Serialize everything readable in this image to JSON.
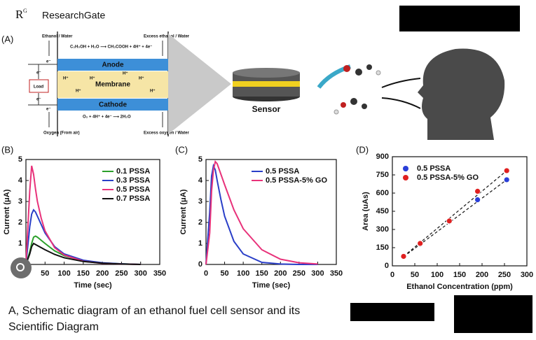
{
  "header": {
    "logo": "R",
    "logo_sup": "G",
    "site": "ResearchGate"
  },
  "figure": {
    "panel_a": "(A)",
    "schematic": {
      "inlet_top": "Ethanol / Water",
      "outlet_top": "Excess ethanol / Water",
      "anode_reaction": "C₂H₅OH + H₂O ⟶ CH₃COOH + 4H⁺ + 4e⁻",
      "anode": "Anode",
      "membrane": "Membrane",
      "cathode": "Cathode",
      "cathode_reaction": "O₂ + 4H⁺ + 4e⁻ ⟶ 2H₂O",
      "inlet_bottom": "Oxygen (From air)",
      "outlet_bottom": "Excess oxygen / Water",
      "load": "Load",
      "proton": "H⁺",
      "electron": "e⁻",
      "sensor": "Sensor"
    }
  },
  "chart_data": [
    {
      "type": "line",
      "panel": "(B)",
      "xlabel": "Time (sec)",
      "ylabel": "Current (μA)",
      "x": [
        0,
        10,
        15,
        20,
        25,
        30,
        40,
        50,
        75,
        100,
        150,
        200,
        250,
        300
      ],
      "series": [
        {
          "name": "0.1 PSSA",
          "color": "#2ca02c",
          "values": [
            0,
            0.6,
            1.0,
            1.3,
            1.35,
            1.3,
            1.15,
            1.0,
            0.65,
            0.42,
            0.18,
            0.07,
            0.03,
            0
          ]
        },
        {
          "name": "0.3 PSSA",
          "color": "#2a3fc8",
          "values": [
            0,
            1.8,
            2.4,
            2.6,
            2.5,
            2.3,
            1.9,
            1.5,
            0.85,
            0.5,
            0.2,
            0.08,
            0.03,
            0
          ]
        },
        {
          "name": "0.5 PSSA",
          "color": "#e8327a",
          "values": [
            0,
            3.5,
            4.7,
            4.3,
            3.6,
            3.0,
            2.2,
            1.6,
            0.8,
            0.45,
            0.15,
            0.05,
            0.02,
            0
          ]
        },
        {
          "name": "0.7 PSSA",
          "color": "#111111",
          "values": [
            0,
            0.5,
            0.85,
            1.0,
            0.95,
            0.9,
            0.8,
            0.7,
            0.48,
            0.32,
            0.14,
            0.06,
            0.02,
            0
          ]
        }
      ],
      "xlim": [
        0,
        350
      ],
      "xticks": [
        0,
        50,
        100,
        150,
        200,
        250,
        300,
        350
      ],
      "ylim": [
        0,
        5
      ],
      "yticks": [
        0,
        1,
        2,
        3,
        4,
        5
      ],
      "legend": "upper right"
    },
    {
      "type": "line",
      "panel": "(C)",
      "xlabel": "Time (sec)",
      "ylabel": "Current (μA)",
      "x": [
        0,
        10,
        15,
        20,
        25,
        30,
        40,
        50,
        75,
        100,
        150,
        200,
        250,
        300
      ],
      "series": [
        {
          "name": "0.5 PSSA",
          "color": "#2a3fc8",
          "values": [
            0,
            2.5,
            4.2,
            4.7,
            4.5,
            4.0,
            3.1,
            2.3,
            1.1,
            0.5,
            0.1,
            0.02,
            0,
            0
          ]
        },
        {
          "name": "0.5 PSSA-5% GO",
          "color": "#e8327a",
          "values": [
            0,
            1.5,
            3.5,
            4.5,
            4.9,
            4.8,
            4.3,
            3.8,
            2.6,
            1.7,
            0.7,
            0.25,
            0.08,
            0.02
          ]
        }
      ],
      "xlim": [
        0,
        350
      ],
      "xticks": [
        0,
        50,
        100,
        150,
        200,
        250,
        300,
        350
      ],
      "ylim": [
        0,
        5
      ],
      "yticks": [
        0,
        1,
        2,
        3,
        4,
        5
      ],
      "legend": "upper right"
    },
    {
      "type": "scatter",
      "panel": "(D)",
      "xlabel": "Ethanol Concentration (ppm)",
      "ylabel": "Area (uAs)",
      "series": [
        {
          "name": "0.5 PSSA",
          "color": "#2a3fd8",
          "x": [
            25,
            62,
            127,
            190,
            255
          ],
          "values": [
            75,
            180,
            365,
            545,
            710
          ]
        },
        {
          "name": "0.5 PSSA-5% GO",
          "color": "#e02020",
          "x": [
            25,
            62,
            127,
            190,
            255
          ],
          "values": [
            78,
            185,
            370,
            615,
            785
          ]
        }
      ],
      "trendline": true,
      "xlim": [
        0,
        300
      ],
      "xticks": [
        0,
        50,
        100,
        150,
        200,
        250,
        300
      ],
      "ylim": [
        0,
        900
      ],
      "yticks": [
        0,
        150,
        300,
        450,
        600,
        750,
        900
      ],
      "legend": "upper left"
    }
  ],
  "caption": {
    "line1": "A, Schematic diagram of an ethanol fuel cell sensor and its",
    "line2": "Scientific Diagram"
  }
}
